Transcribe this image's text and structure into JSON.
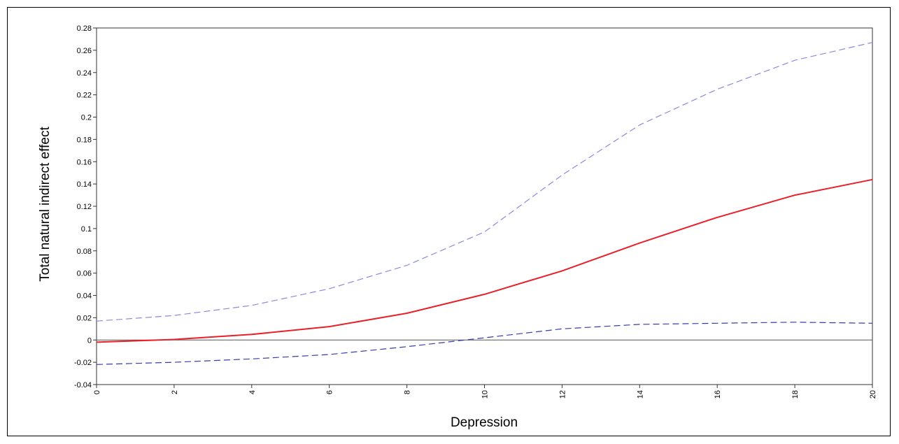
{
  "chart_data": {
    "type": "line",
    "title": "",
    "xlabel": "Depression",
    "ylabel": "Total natural indirect effect",
    "xlim": [
      0,
      20
    ],
    "ylim": [
      -0.04,
      0.28
    ],
    "grid": false,
    "reference_line_y": 0,
    "x_ticks": [
      "0",
      "2",
      "4",
      "6",
      "8",
      "10",
      "12",
      "14",
      "16",
      "18",
      "20"
    ],
    "y_ticks": [
      "-0.04",
      "-0.02",
      "0",
      "0.02",
      "0.04",
      "0.06",
      "0.08",
      "0.1",
      "0.12",
      "0.14",
      "0.16",
      "0.18",
      "0.2",
      "0.22",
      "0.24",
      "0.26",
      "0.28"
    ],
    "x": [
      0,
      2,
      4,
      6,
      8,
      10,
      12,
      14,
      16,
      18,
      20
    ],
    "series": [
      {
        "style": "solid",
        "color": "#e8202a",
        "values": [
          -0.002,
          0.0005,
          0.005,
          0.012,
          0.024,
          0.041,
          0.062,
          0.087,
          0.11,
          0.13,
          0.144
        ]
      },
      {
        "style": "dashed",
        "color": "#8a8adc",
        "values": [
          0.017,
          0.022,
          0.031,
          0.046,
          0.067,
          0.097,
          0.148,
          0.193,
          0.225,
          0.251,
          0.267
        ]
      },
      {
        "style": "dashed",
        "color": "#3a3aaa",
        "values": [
          -0.022,
          -0.02,
          -0.017,
          -0.013,
          -0.006,
          0.002,
          0.01,
          0.014,
          0.015,
          0.016,
          0.015
        ]
      }
    ]
  }
}
